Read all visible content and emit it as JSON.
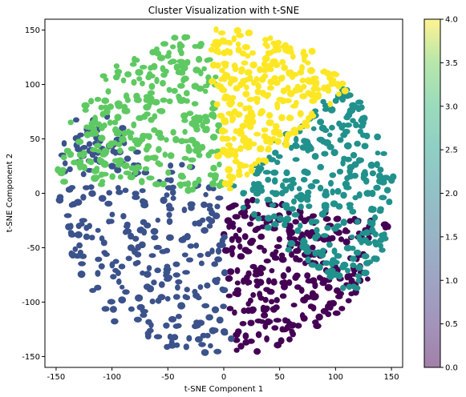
{
  "chart_data": {
    "type": "scatter",
    "title": "Cluster Visualization with t-SNE",
    "xlabel": "t-SNE Component 1",
    "ylabel": "t-SNE Component 2",
    "xlim": [
      -160,
      160
    ],
    "ylim": [
      -160,
      160
    ],
    "xticks": [
      -150,
      -100,
      -50,
      0,
      50,
      100,
      150
    ],
    "yticks": [
      -150,
      -100,
      -50,
      0,
      50,
      100,
      150
    ],
    "grid": false,
    "colorbar": {
      "range": [
        0.0,
        4.0
      ],
      "ticks": [
        "0.0",
        "0.5",
        "1.0",
        "1.5",
        "2.0",
        "2.5",
        "3.0",
        "3.5",
        "4.0"
      ],
      "colormap": "viridis",
      "alpha": 0.5
    },
    "point_count_per_cluster": 300,
    "clusters": [
      {
        "label": 0,
        "color": "#440154",
        "angle_range_deg": [
          -87,
          -10
        ]
      },
      {
        "label": 1,
        "color": "#3b528b",
        "angle_range_deg": [
          -87,
          145
        ],
        "direction": "through-left"
      },
      {
        "label": 2,
        "color": "#21918c",
        "angle_range_deg": [
          -40,
          45
        ]
      },
      {
        "label": 3,
        "color": "#5ec962",
        "angle_range_deg": [
          95,
          175
        ]
      },
      {
        "label": 4,
        "color": "#fde725",
        "angle_range_deg": [
          40,
          95
        ]
      }
    ]
  }
}
